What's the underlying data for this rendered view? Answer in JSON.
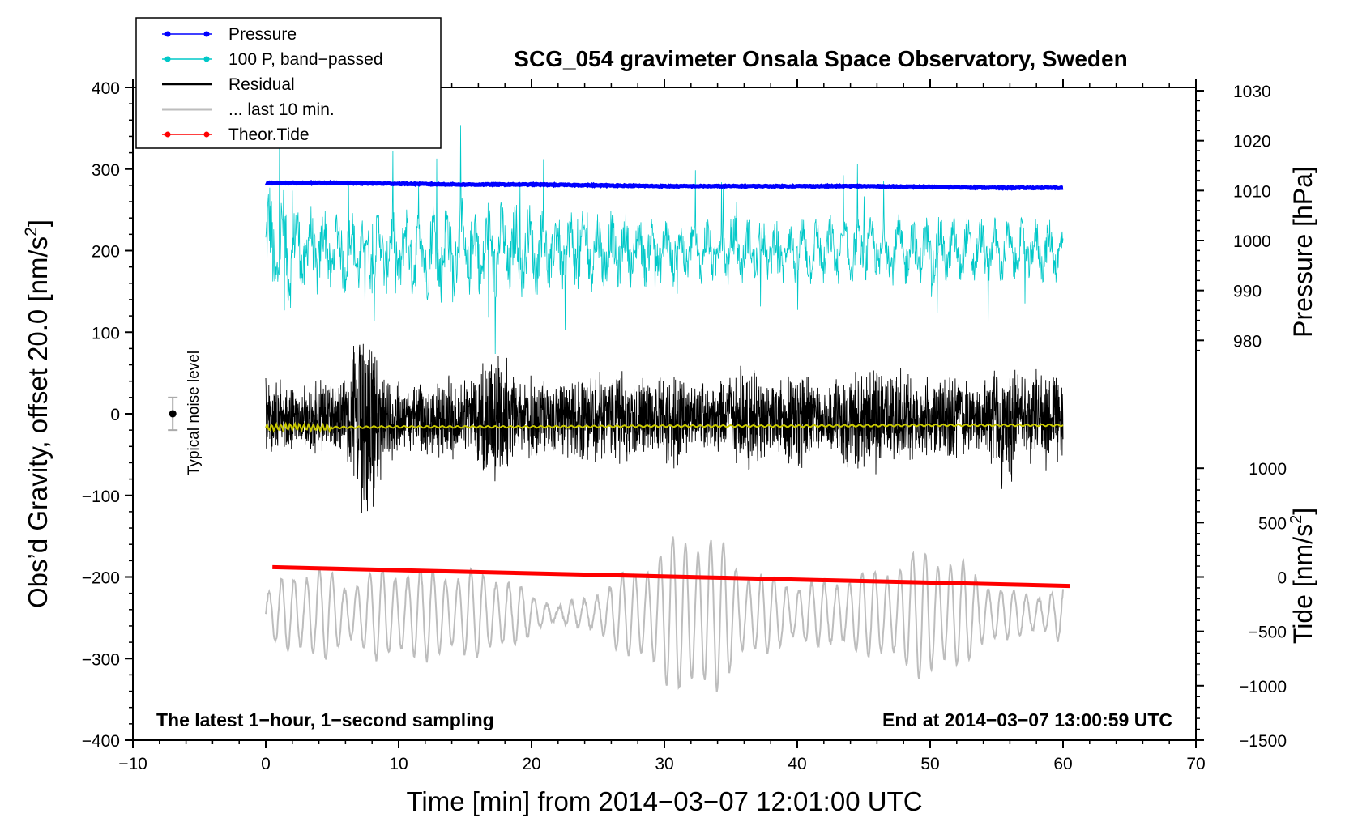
{
  "chart_data": {
    "type": "line",
    "title": "SCG_054 gravimeter Onsala Space Observatory, Sweden",
    "xlabel": "Time [min] from 2014−03−07 12:01:00 UTC",
    "ylabel": "Obs'd Gravity, offset 20.0 [nm/s²]",
    "ylabel_main": "Obs’d Gravity, offset 20.0 [nm/s",
    "ylabel_sup": "2",
    "ylabel_close": "]",
    "xlim": [
      -10,
      70
    ],
    "ylim": [
      -400,
      400
    ],
    "x_ticks": [
      -10,
      0,
      10,
      20,
      30,
      40,
      50,
      60,
      70
    ],
    "x_tick_labels": [
      "−10",
      "0",
      "10",
      "20",
      "30",
      "40",
      "50",
      "60",
      "70"
    ],
    "y_ticks": [
      -400,
      -300,
      -200,
      -100,
      0,
      100,
      200,
      300,
      400
    ],
    "y_tick_labels": [
      "−400",
      "−300",
      "−200",
      "−100",
      "0",
      "100",
      "200",
      "300",
      "400"
    ],
    "pressure_axis": {
      "label": "Pressure [hPa]",
      "ticks": [
        980,
        990,
        1000,
        1010,
        1020,
        1030
      ],
      "tick_labels": [
        "980",
        "990",
        "1000",
        "1010",
        "1020",
        "1030"
      ],
      "map_gravity_at_980": 90,
      "map_gravity_per_hpa": 6.12
    },
    "tide_axis": {
      "label_main": "Tide [nm/s",
      "label_sup": "2",
      "label_close": "]",
      "ticks": [
        -1500,
        -1000,
        -500,
        0,
        500,
        1000
      ],
      "tick_labels": [
        "−1500",
        "−1000",
        "−500",
        "0",
        "500",
        "1000"
      ],
      "map_gravity_at_0": -200,
      "map_gravity_per_unit": 0.1333
    },
    "legend": [
      {
        "label": "Pressure",
        "color": "#0000ff",
        "marker": true
      },
      {
        "label": "100 P, band−passed",
        "color": "#00c8c8",
        "marker": true
      },
      {
        "label": "Residual",
        "color": "#000000",
        "marker": false
      },
      {
        "label": "... last 10 min.",
        "color": "#bdbdbd",
        "marker": false
      },
      {
        "label": "Theor.Tide",
        "color": "#ff0000",
        "marker": true
      }
    ],
    "annotations": {
      "left": "The latest 1−hour, 1−second sampling",
      "right": "End at 2014−03−07 13:00:59 UTC",
      "noise": "Typical noise level"
    },
    "noise_bar": {
      "x": -7,
      "y": 0,
      "low": -20,
      "high": 20
    },
    "series": [
      {
        "name": "Pressure",
        "color": "#0000ff",
        "x": [
          0,
          5,
          10,
          15,
          20,
          25,
          30,
          35,
          40,
          45,
          50,
          55,
          60
        ],
        "values": [
          283,
          283,
          282,
          281,
          281,
          280,
          279,
          279,
          279,
          279,
          278,
          277,
          277
        ]
      },
      {
        "name": "100 P, band-passed",
        "color": "#00c8c8",
        "baseline": 200,
        "amplitude_profile": [
          [
            0,
            95
          ],
          [
            3,
            60
          ],
          [
            8,
            55
          ],
          [
            14,
            70
          ],
          [
            20,
            60
          ],
          [
            30,
            45
          ],
          [
            40,
            45
          ],
          [
            50,
            45
          ],
          [
            60,
            40
          ]
        ]
      },
      {
        "name": "Residual",
        "color": "#000000",
        "baseline": -5,
        "envelope": [
          [
            0,
            55
          ],
          [
            2,
            45
          ],
          [
            4,
            50
          ],
          [
            6,
            55
          ],
          [
            7.5,
            150
          ],
          [
            9,
            60
          ],
          [
            11,
            45
          ],
          [
            13,
            60
          ],
          [
            15,
            55
          ],
          [
            17.5,
            100
          ],
          [
            19,
            55
          ],
          [
            21,
            50
          ],
          [
            23,
            55
          ],
          [
            25,
            60
          ],
          [
            27,
            60
          ],
          [
            29,
            45
          ],
          [
            30.5,
            75
          ],
          [
            32,
            45
          ],
          [
            34,
            50
          ],
          [
            35,
            55
          ],
          [
            36,
            75
          ],
          [
            38,
            45
          ],
          [
            40,
            70
          ],
          [
            42,
            50
          ],
          [
            44,
            70
          ],
          [
            46,
            75
          ],
          [
            48,
            60
          ],
          [
            50,
            55
          ],
          [
            52,
            60
          ],
          [
            54,
            45
          ],
          [
            55.5,
            105
          ],
          [
            57,
            60
          ],
          [
            58.5,
            70
          ],
          [
            60,
            50
          ]
        ]
      },
      {
        "name": "Residual (smoothed)",
        "color": "#c8c800",
        "x": [
          0,
          2,
          4,
          10,
          20,
          30,
          40,
          50,
          60
        ],
        "values": [
          -17,
          -16,
          -17,
          -16,
          -16,
          -15,
          -15,
          -14,
          -14
        ]
      },
      {
        "name": "... last 10 min.",
        "color": "#bdbdbd",
        "baseline": -245,
        "amplitude_profile": [
          [
            0,
            25
          ],
          [
            2,
            55
          ],
          [
            4,
            60
          ],
          [
            6,
            40
          ],
          [
            8,
            55
          ],
          [
            10,
            60
          ],
          [
            14,
            55
          ],
          [
            18,
            50
          ],
          [
            20,
            25
          ],
          [
            22,
            10
          ],
          [
            24,
            20
          ],
          [
            26,
            40
          ],
          [
            28,
            60
          ],
          [
            30,
            85
          ],
          [
            32,
            110
          ],
          [
            34,
            95
          ],
          [
            36,
            60
          ],
          [
            38,
            45
          ],
          [
            40,
            40
          ],
          [
            42,
            40
          ],
          [
            44,
            50
          ],
          [
            46,
            55
          ],
          [
            48,
            70
          ],
          [
            50,
            85
          ],
          [
            52,
            70
          ],
          [
            54,
            45
          ],
          [
            56,
            30
          ],
          [
            58,
            25
          ],
          [
            60,
            35
          ]
        ]
      },
      {
        "name": "Theor.Tide",
        "color": "#ff0000",
        "x": [
          0.5,
          60.5
        ],
        "values": [
          -188,
          -211
        ]
      }
    ]
  }
}
